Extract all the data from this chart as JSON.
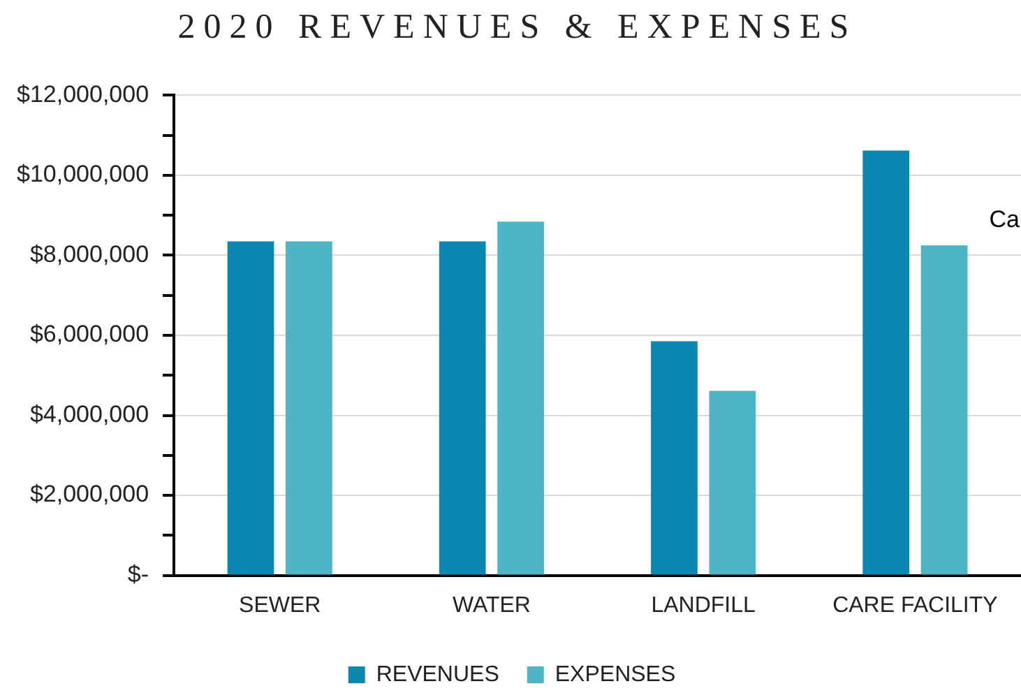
{
  "chart_data": {
    "type": "bar",
    "title": "2020 REVENUES & EXPENSES",
    "categories": [
      "SEWER",
      "WATER",
      "LANDFILL",
      "CARE FACILITY"
    ],
    "series": [
      {
        "name": "REVENUES",
        "color": "#0b87b2",
        "values": [
          8350000,
          8350000,
          5850000,
          10620000
        ]
      },
      {
        "name": "EXPENSES",
        "color": "#4db5c6",
        "values": [
          8350000,
          8840000,
          4610000,
          8250000
        ]
      }
    ],
    "ylim": [
      0,
      12000000
    ],
    "yticks": [
      {
        "value": 0,
        "label": "$-"
      },
      {
        "value": 1000000,
        "label": null
      },
      {
        "value": 2000000,
        "label": "$2,000,000"
      },
      {
        "value": 3000000,
        "label": null
      },
      {
        "value": 4000000,
        "label": "$4,000,000"
      },
      {
        "value": 5000000,
        "label": null
      },
      {
        "value": 6000000,
        "label": "$6,000,000"
      },
      {
        "value": 7000000,
        "label": null
      },
      {
        "value": 8000000,
        "label": "$8,000,000"
      },
      {
        "value": 9000000,
        "label": null
      },
      {
        "value": 10000000,
        "label": "$10,000,000"
      },
      {
        "value": 11000000,
        "label": null
      },
      {
        "value": 12000000,
        "label": "$12,000,000"
      }
    ],
    "grid": "y",
    "legend": "bottom",
    "annotations": [
      "Ca"
    ]
  }
}
